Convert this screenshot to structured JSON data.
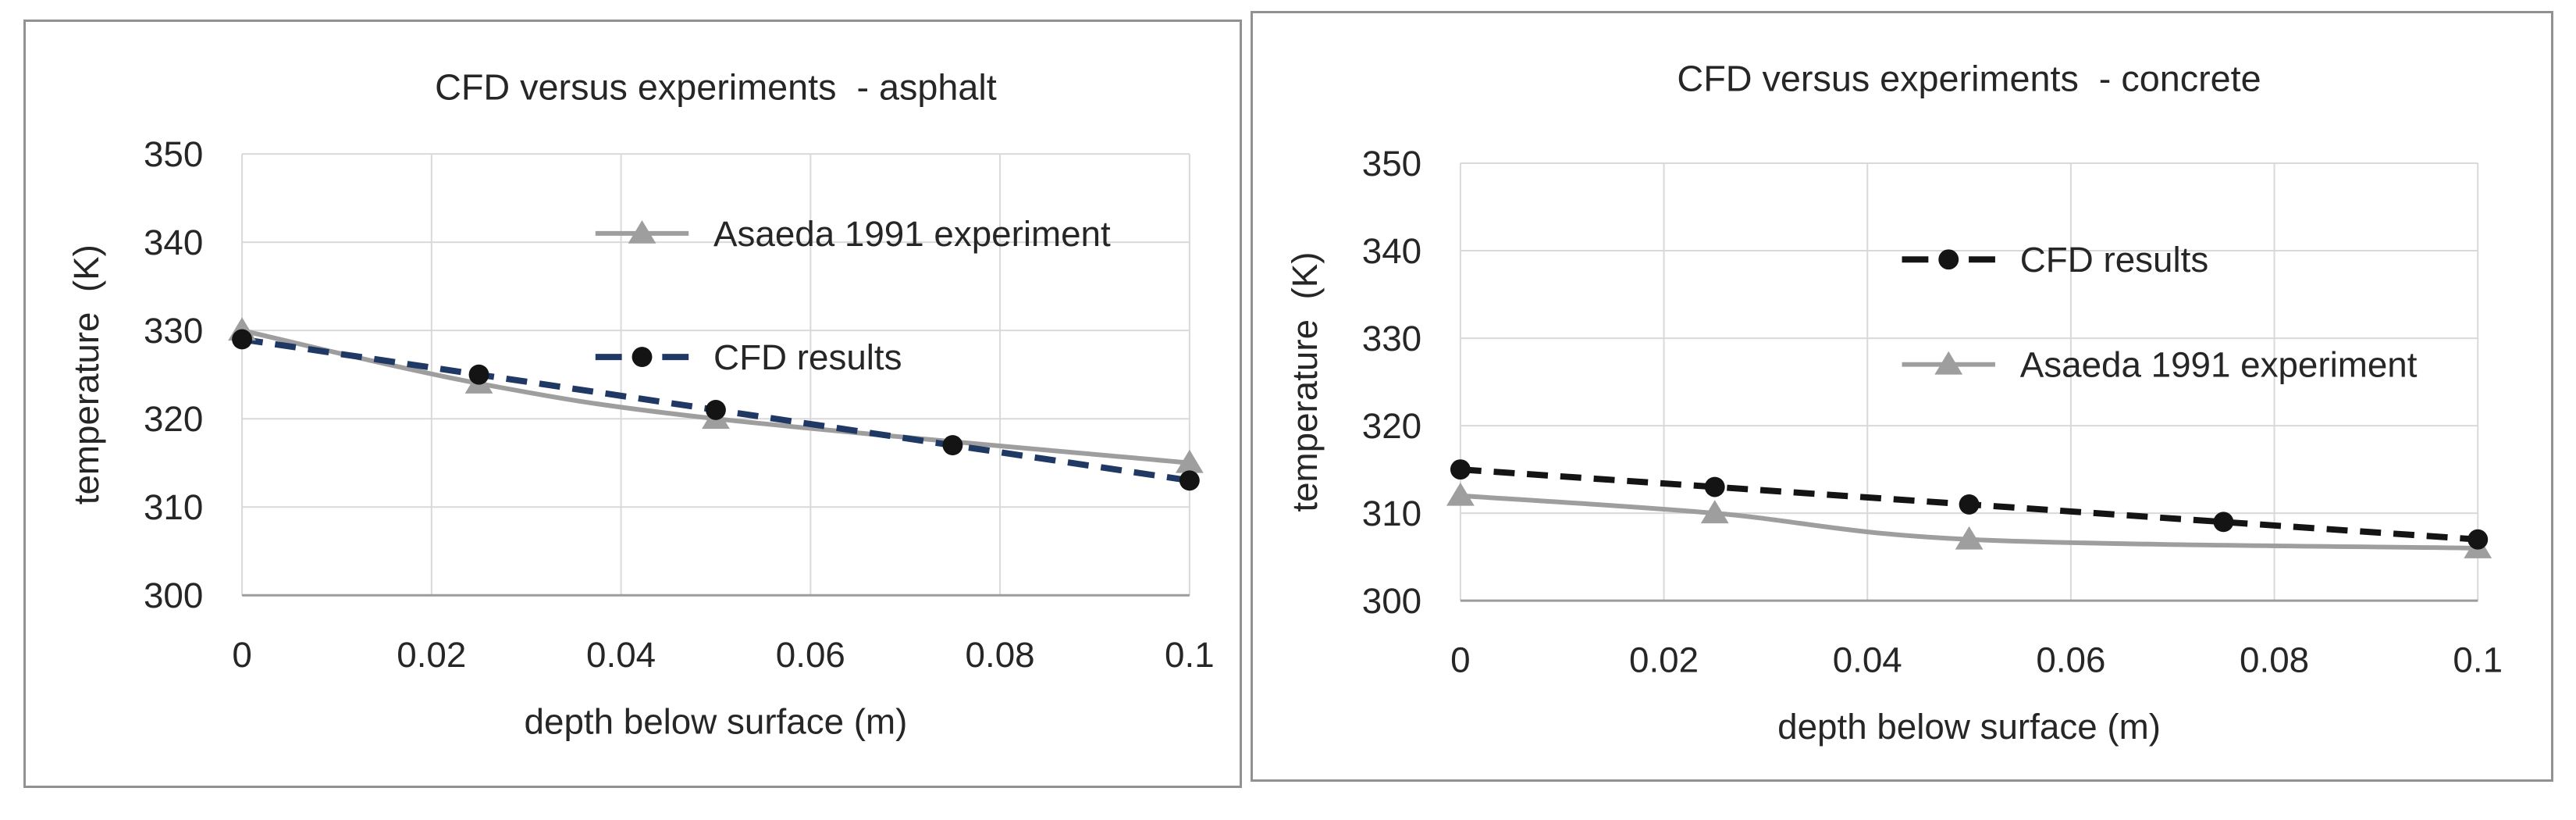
{
  "style": {
    "background": "#ffffff",
    "panel_border": "#919191",
    "grid_color": "#d9d9d9",
    "axis_color": "#9c9c9c",
    "text_color": "#262626",
    "navy_accent": "#1f3864",
    "black_series": "#141414",
    "gray_series": "#9e9e9e"
  },
  "chart_data": [
    {
      "type": "line",
      "title": "CFD versus experiments  - asphalt",
      "xlabel": "depth below surface (m)",
      "ylabel": "temperature  (K)",
      "xlim": [
        0,
        0.1
      ],
      "ylim": [
        300,
        350
      ],
      "x_tick_values": [
        0,
        0.02,
        0.04,
        0.06,
        0.08,
        0.1
      ],
      "x_tick_labels": [
        "0",
        "0.02",
        "0.04",
        "0.06",
        "0.08",
        "0.1"
      ],
      "y_tick_values": [
        350,
        340,
        330,
        320,
        310,
        300
      ],
      "y_tick_labels": [
        "350",
        "340",
        "330",
        "320",
        "310",
        "300"
      ],
      "grid": true,
      "legend_position": "inside plot, center-right",
      "draw_order": [
        0,
        1
      ],
      "series": [
        {
          "name": "Asaeda 1991 experiment",
          "x": [
            0,
            0.025,
            0.05,
            0.1
          ],
          "y": [
            330,
            324,
            320,
            315
          ],
          "color": "#9e9e9e",
          "marker": "triangle",
          "marker_color": "#9e9e9e",
          "line_style": "solid"
        },
        {
          "name": "CFD results",
          "x": [
            0,
            0.025,
            0.05,
            0.075,
            0.1
          ],
          "y": [
            329,
            325,
            321,
            317,
            313
          ],
          "color": "#1f3864",
          "marker": "circle",
          "marker_color": "#141414",
          "line_style": "dashed"
        }
      ],
      "legend": [
        {
          "series": 0,
          "fx": 0.373,
          "value_y": 341
        },
        {
          "series": 1,
          "fx": 0.373,
          "value_y": 327
        }
      ]
    },
    {
      "type": "line",
      "title": "CFD versus experiments  - concrete",
      "xlabel": "depth below surface (m)",
      "ylabel": "temperature  (K)",
      "xlim": [
        0,
        0.1
      ],
      "ylim": [
        300,
        350
      ],
      "x_tick_values": [
        0,
        0.02,
        0.04,
        0.06,
        0.08,
        0.1
      ],
      "x_tick_labels": [
        "0",
        "0.02",
        "0.04",
        "0.06",
        "0.08",
        "0.1"
      ],
      "y_tick_values": [
        350,
        340,
        330,
        320,
        310,
        300
      ],
      "y_tick_labels": [
        "350",
        "340",
        "330",
        "320",
        "310",
        "300"
      ],
      "grid": true,
      "legend_position": "inside plot, center-right",
      "draw_order": [
        1,
        0
      ],
      "series": [
        {
          "name": "CFD results",
          "x": [
            0,
            0.025,
            0.05,
            0.075,
            0.1
          ],
          "y": [
            315,
            313,
            311,
            309,
            307
          ],
          "color": "#141414",
          "marker": "circle",
          "marker_color": "#141414",
          "line_style": "dashed"
        },
        {
          "name": "Asaeda 1991 experiment",
          "x": [
            0,
            0.025,
            0.05,
            0.1
          ],
          "y": [
            312,
            310,
            307,
            306
          ],
          "color": "#9e9e9e",
          "marker": "triangle",
          "marker_color": "#9e9e9e",
          "line_style": "solid"
        }
      ],
      "legend": [
        {
          "series": 0,
          "fx": 0.434,
          "value_y": 339
        },
        {
          "series": 1,
          "fx": 0.434,
          "value_y": 327
        }
      ]
    }
  ]
}
